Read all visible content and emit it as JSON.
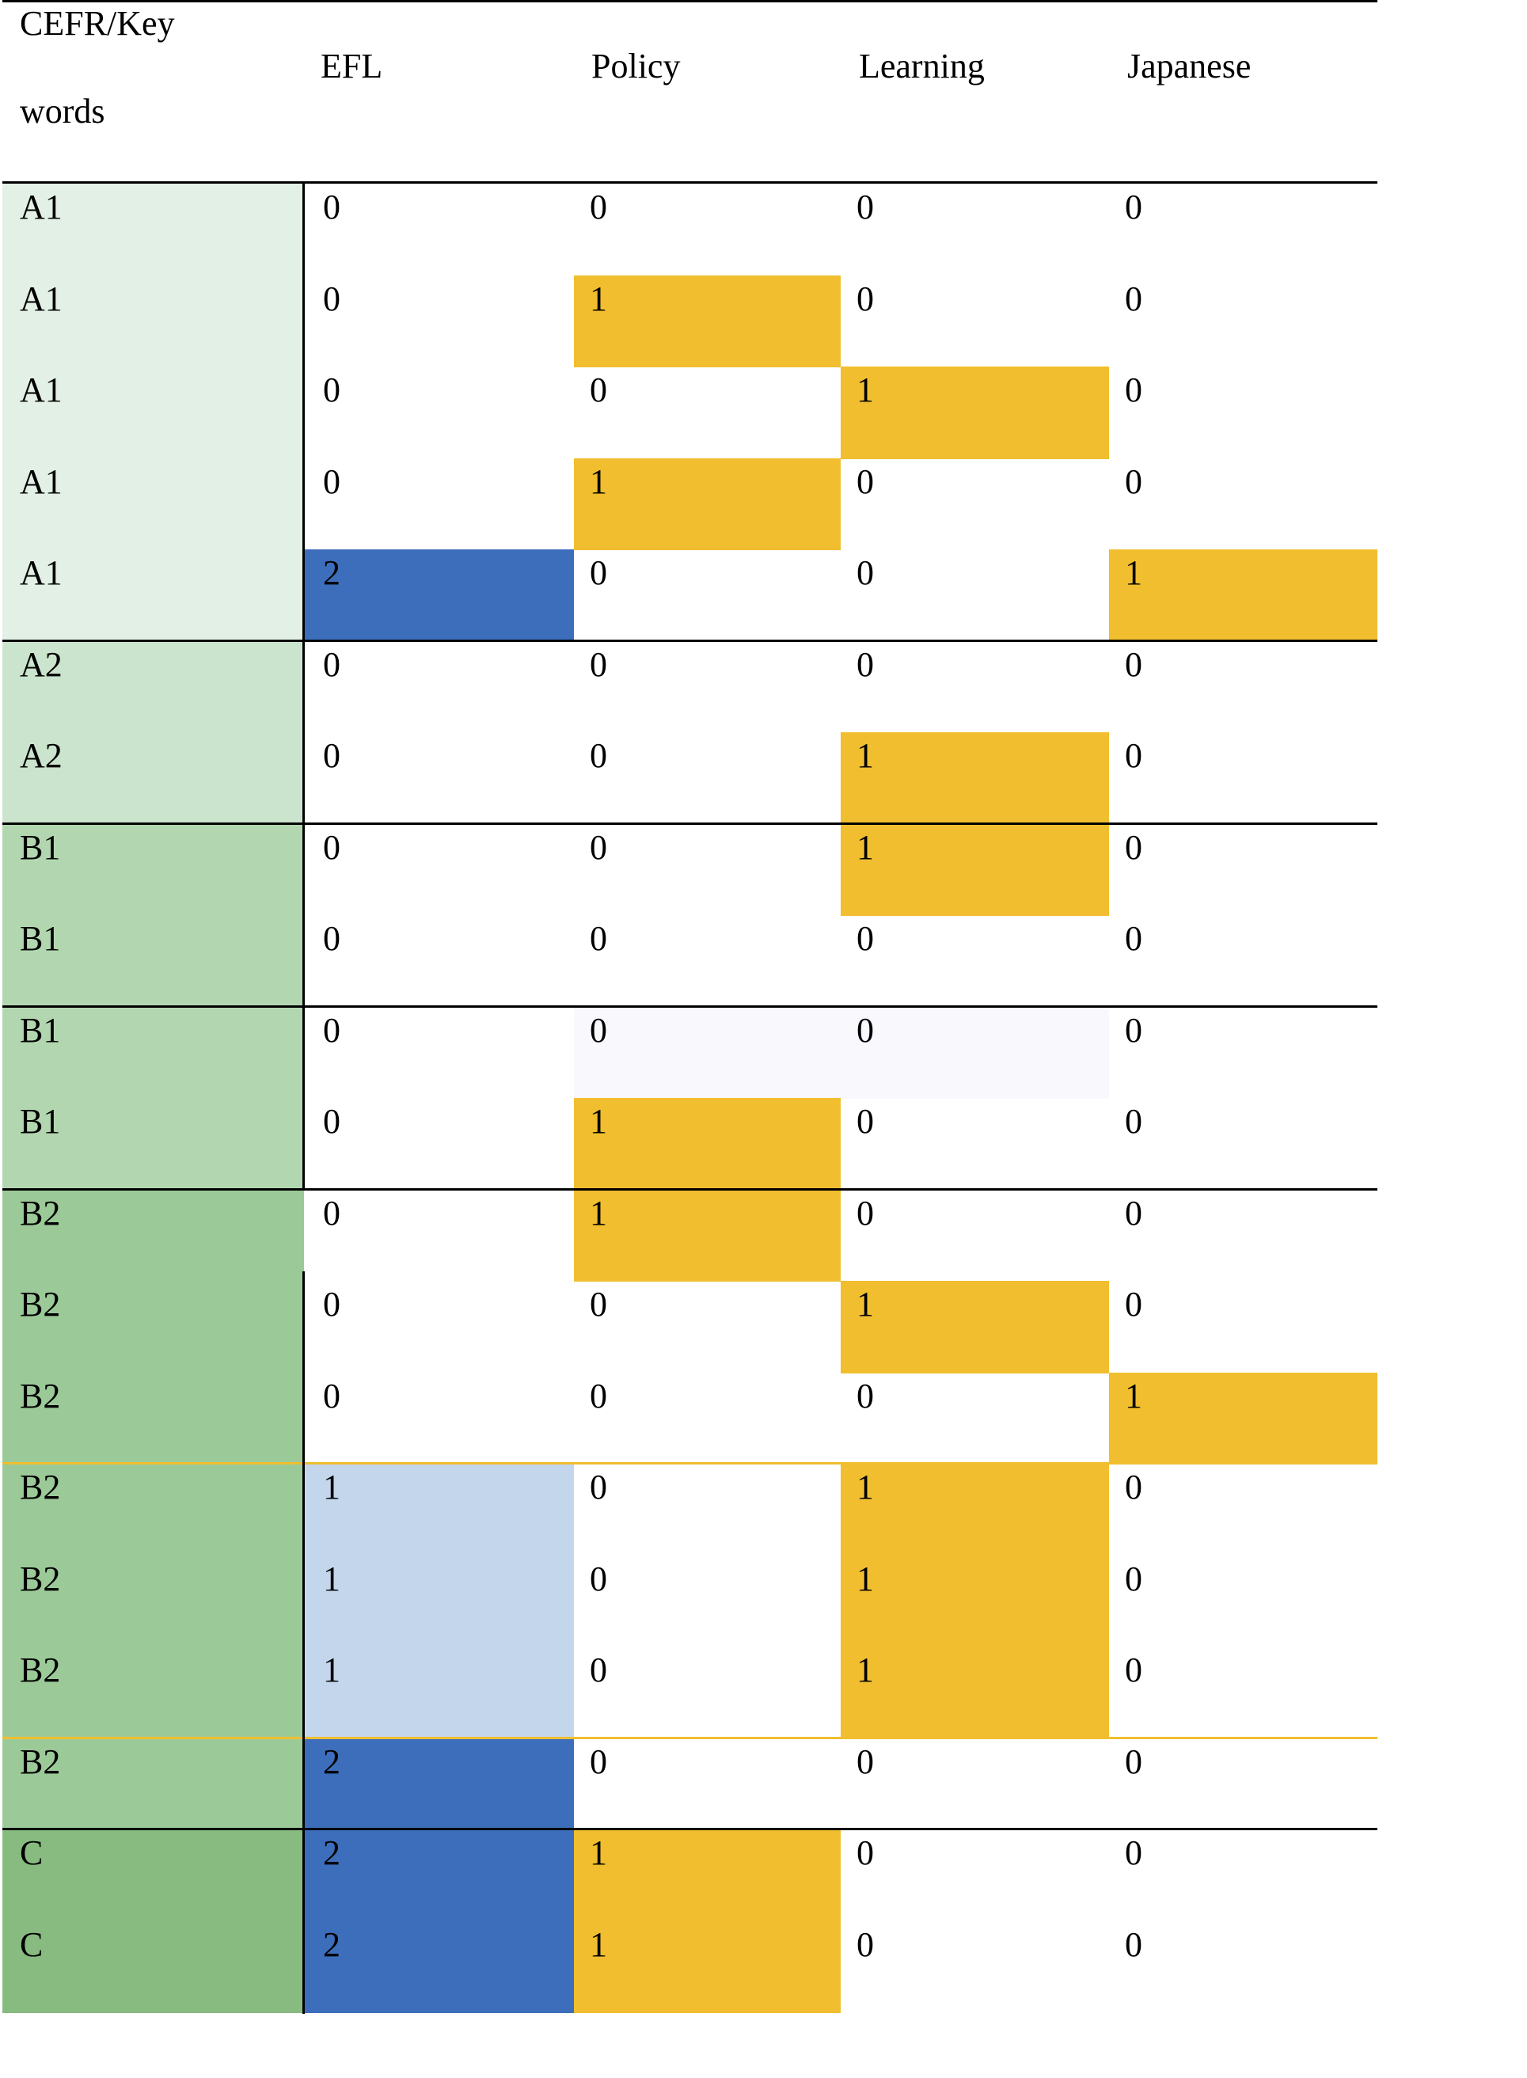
{
  "header": {
    "label_col": "CEFR/Key words",
    "label_col_line1": "CEFR/Key",
    "label_col_line2": "words",
    "columns": [
      "EFL",
      "Policy",
      "Learning",
      "Japanese"
    ]
  },
  "colors": {
    "yellow": "#f0be2e",
    "dark_blue": "#3d6ebc",
    "light_blue": "#c4d6ec",
    "faint_lavender": "#f8f8fd",
    "level_A1": "#e2f0e6",
    "level_A2": "#cae4cd",
    "level_B1": "#b2d7b0",
    "level_B2": "#9bca98",
    "level_C": "#87bb80"
  },
  "rows": [
    {
      "level": "A1",
      "values": [
        "0",
        "0",
        "0",
        "0"
      ],
      "fills": [
        "",
        "",
        "",
        ""
      ]
    },
    {
      "level": "A1",
      "values": [
        "0",
        "1",
        "0",
        "0"
      ],
      "fills": [
        "",
        "yellow",
        "",
        ""
      ]
    },
    {
      "level": "A1",
      "values": [
        "0",
        "0",
        "1",
        "0"
      ],
      "fills": [
        "",
        "",
        "yellow",
        ""
      ]
    },
    {
      "level": "A1",
      "values": [
        "0",
        "1",
        "0",
        "0"
      ],
      "fills": [
        "",
        "yellow",
        "",
        ""
      ]
    },
    {
      "level": "A1",
      "values": [
        "2",
        "0",
        "0",
        "1"
      ],
      "fills": [
        "dark_blue",
        "",
        "",
        "yellow"
      ]
    },
    {
      "level": "A2",
      "values": [
        "0",
        "0",
        "0",
        "0"
      ],
      "fills": [
        "",
        "",
        "",
        ""
      ]
    },
    {
      "level": "A2",
      "values": [
        "0",
        "0",
        "1",
        "0"
      ],
      "fills": [
        "",
        "",
        "yellow",
        ""
      ]
    },
    {
      "level": "B1",
      "values": [
        "0",
        "0",
        "1",
        "0"
      ],
      "fills": [
        "",
        "",
        "yellow",
        ""
      ]
    },
    {
      "level": "B1",
      "values": [
        "0",
        "0",
        "0",
        "0"
      ],
      "fills": [
        "",
        "",
        "",
        ""
      ]
    },
    {
      "level": "B1",
      "values": [
        "0",
        "0",
        "0",
        "0"
      ],
      "fills": [
        "",
        "faint_lavender",
        "faint_lavender",
        ""
      ]
    },
    {
      "level": "B1",
      "values": [
        "0",
        "1",
        "0",
        "0"
      ],
      "fills": [
        "",
        "yellow",
        "",
        ""
      ]
    },
    {
      "level": "B2",
      "values": [
        "0",
        "1",
        "0",
        "0"
      ],
      "fills": [
        "",
        "yellow",
        "",
        ""
      ]
    },
    {
      "level": "B2",
      "values": [
        "0",
        "0",
        "1",
        "0"
      ],
      "fills": [
        "",
        "",
        "yellow",
        ""
      ]
    },
    {
      "level": "B2",
      "values": [
        "0",
        "0",
        "0",
        "1"
      ],
      "fills": [
        "",
        "",
        "",
        "yellow"
      ]
    },
    {
      "level": "B2",
      "values": [
        "1",
        "0",
        "1",
        "0"
      ],
      "fills": [
        "light_blue",
        "",
        "yellow",
        ""
      ]
    },
    {
      "level": "B2",
      "values": [
        "1",
        "0",
        "1",
        "0"
      ],
      "fills": [
        "light_blue",
        "",
        "yellow",
        ""
      ]
    },
    {
      "level": "B2",
      "values": [
        "1",
        "0",
        "1",
        "0"
      ],
      "fills": [
        "light_blue",
        "",
        "yellow",
        ""
      ]
    },
    {
      "level": "B2",
      "values": [
        "2",
        "0",
        "0",
        "0"
      ],
      "fills": [
        "dark_blue",
        "",
        "",
        ""
      ]
    },
    {
      "level": "C",
      "values": [
        "2",
        "1",
        "0",
        "0"
      ],
      "fills": [
        "dark_blue",
        "yellow",
        "",
        ""
      ]
    },
    {
      "level": "C",
      "values": [
        "2",
        "1",
        "0",
        "0"
      ],
      "fills": [
        "dark_blue",
        "yellow",
        "",
        ""
      ]
    }
  ]
}
